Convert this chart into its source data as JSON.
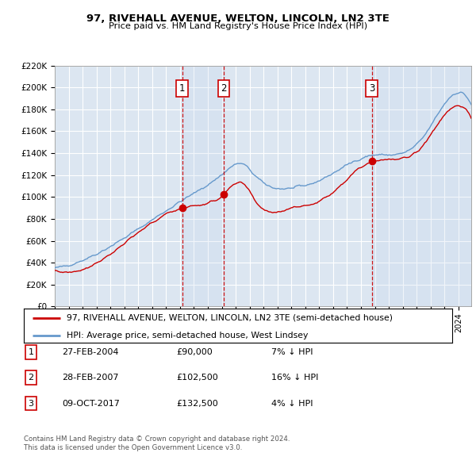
{
  "title": "97, RIVEHALL AVENUE, WELTON, LINCOLN, LN2 3TE",
  "subtitle": "Price paid vs. HM Land Registry's House Price Index (HPI)",
  "background_color": "#ffffff",
  "plot_background": "#dce6f1",
  "grid_color": "#ffffff",
  "x_start_year": 1995,
  "x_end_year": 2024,
  "y_min": 0,
  "y_max": 220000,
  "y_ticks": [
    0,
    20000,
    40000,
    60000,
    80000,
    100000,
    120000,
    140000,
    160000,
    180000,
    200000,
    220000
  ],
  "y_tick_labels": [
    "£0",
    "£20K",
    "£40K",
    "£60K",
    "£80K",
    "£100K",
    "£120K",
    "£140K",
    "£160K",
    "£180K",
    "£200K",
    "£220K"
  ],
  "sale_dates": [
    2004.15,
    2007.15,
    2017.77
  ],
  "sale_prices": [
    90000,
    102500,
    132500
  ],
  "sale_labels": [
    "1",
    "2",
    "3"
  ],
  "vline_color": "#cc0000",
  "sale_dot_color": "#cc0000",
  "hpi_line_color": "#6699cc",
  "price_line_color": "#cc0000",
  "legend_label_price": "97, RIVEHALL AVENUE, WELTON, LINCOLN, LN2 3TE (semi-detached house)",
  "legend_label_hpi": "HPI: Average price, semi-detached house, West Lindsey",
  "table_entries": [
    {
      "label": "1",
      "date": "27-FEB-2004",
      "price": "£90,000",
      "note": "7% ↓ HPI"
    },
    {
      "label": "2",
      "date": "28-FEB-2007",
      "price": "£102,500",
      "note": "16% ↓ HPI"
    },
    {
      "label": "3",
      "date": "09-OCT-2017",
      "price": "£132,500",
      "note": "4% ↓ HPI"
    }
  ],
  "footnote1": "Contains HM Land Registry data © Crown copyright and database right 2024.",
  "footnote2": "This data is licensed under the Open Government Licence v3.0."
}
